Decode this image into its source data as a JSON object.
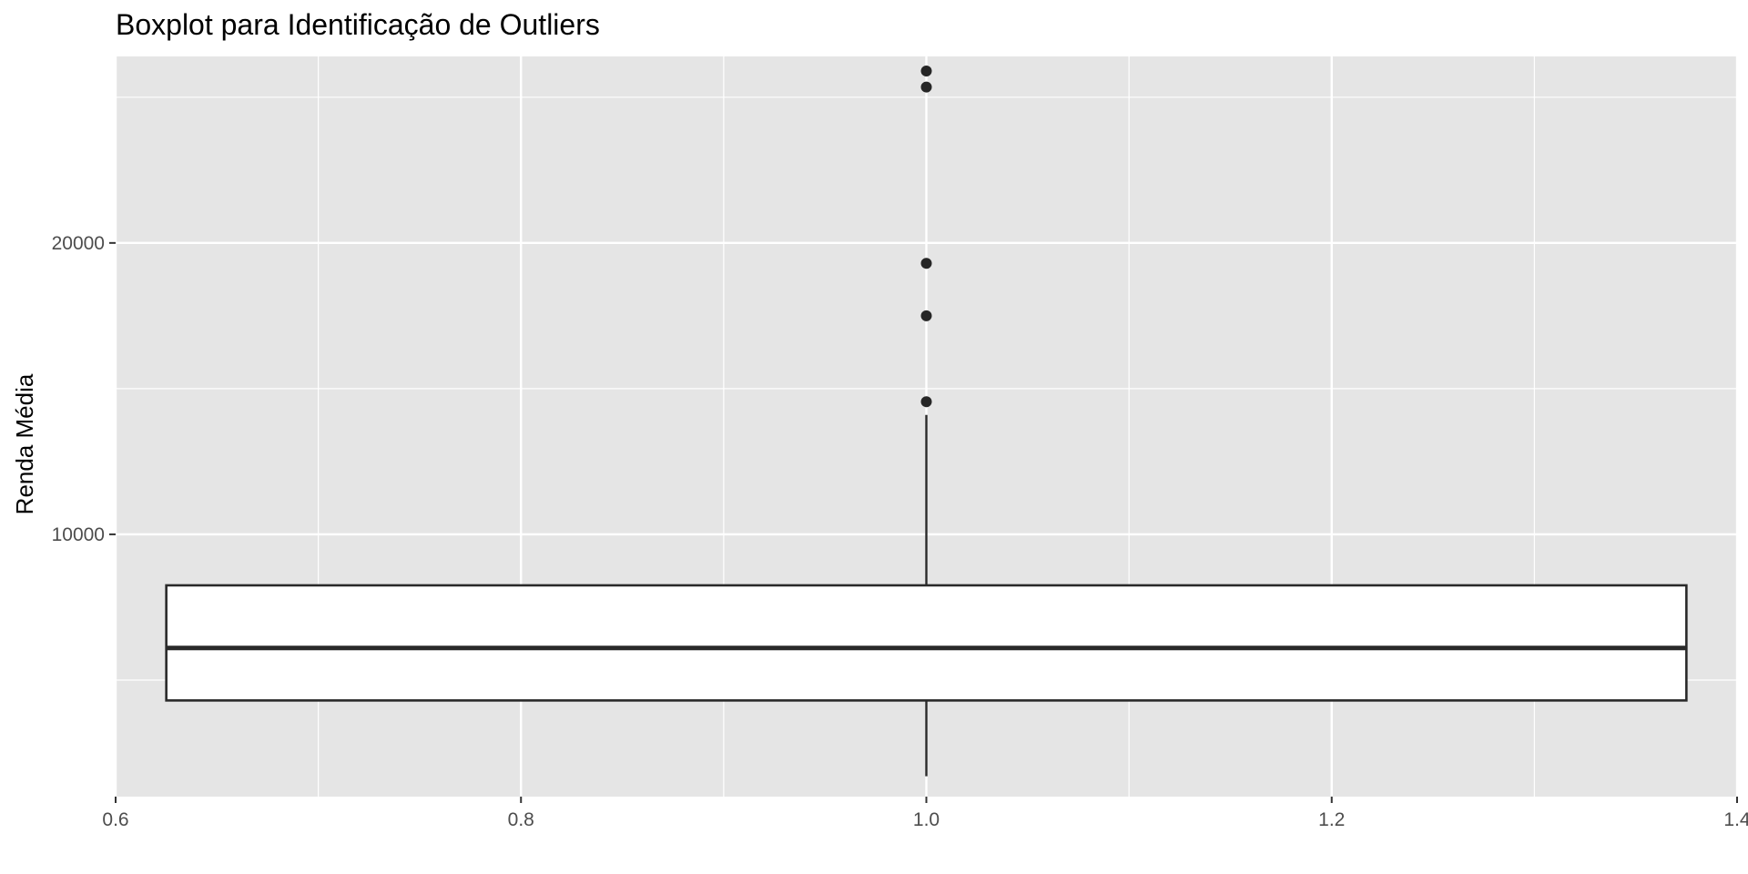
{
  "chart_data": {
    "type": "boxplot",
    "title": "Boxplot para Identificação de Outliers",
    "xlabel": "",
    "ylabel": "Renda Média",
    "xlim": [
      0.6,
      1.4
    ],
    "ylim": [
      1000,
      26400
    ],
    "x_ticks": [
      0.6,
      0.8,
      1.0,
      1.2,
      1.4
    ],
    "x_tick_labels": [
      "0.6",
      "0.8",
      "1.0",
      "1.2",
      "1.4"
    ],
    "y_ticks": [
      10000,
      20000
    ],
    "y_tick_labels": [
      "10000",
      "20000"
    ],
    "x_minor_ticks": [
      0.7,
      0.9,
      1.1,
      1.3
    ],
    "y_minor_ticks": [
      5000,
      15000,
      25000
    ],
    "grid": true,
    "box": {
      "x": 1.0,
      "width": 0.75,
      "q1": 4300,
      "median": 6100,
      "q3": 8250,
      "whisker_low": 1700,
      "whisker_high": 14100,
      "outliers": [
        14550,
        17500,
        19300,
        25350,
        25900
      ]
    },
    "colors": {
      "panel": "#e5e5e5",
      "grid": "#ffffff",
      "box_fill": "#ffffff",
      "box_line": "#2a2a2a",
      "point": "#262626",
      "tick": "#333333"
    }
  }
}
